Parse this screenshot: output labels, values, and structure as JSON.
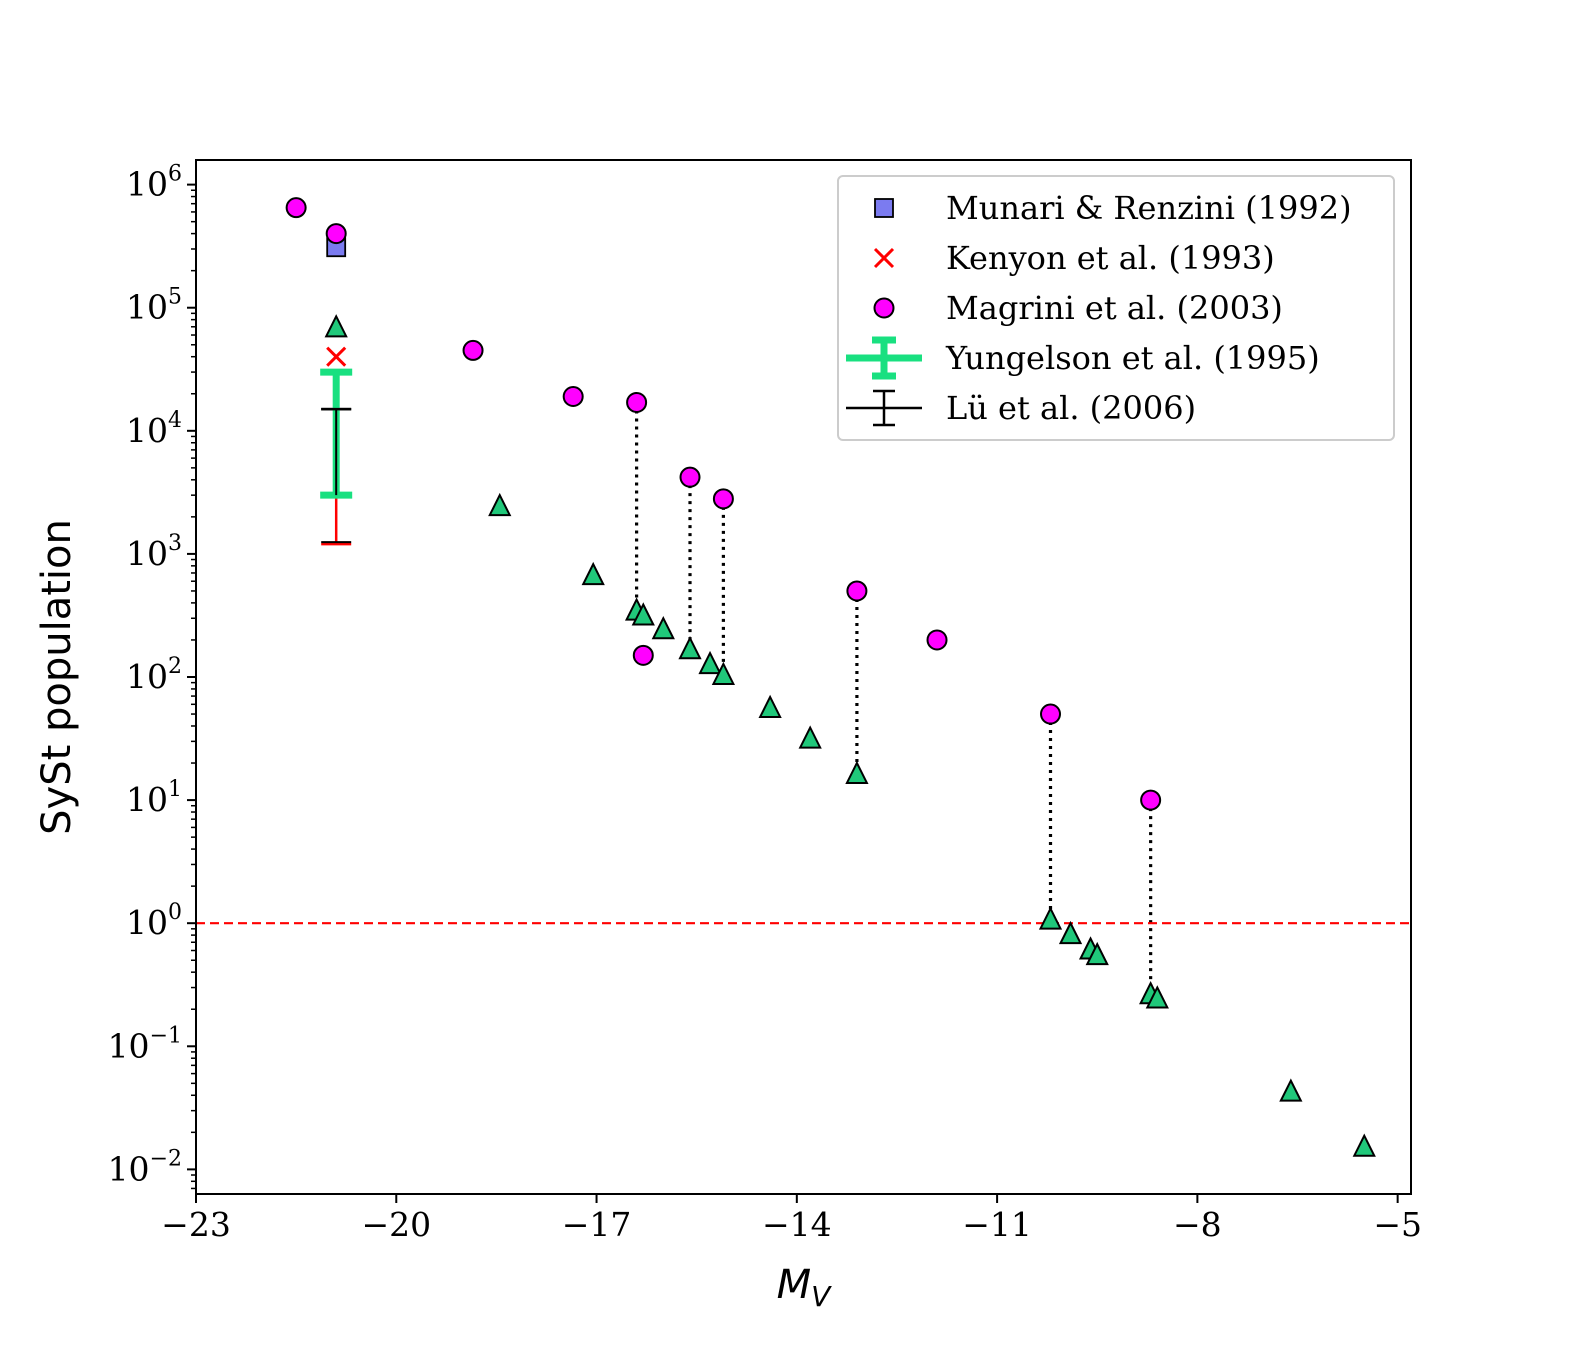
{
  "chart_data": {
    "type": "scatter",
    "title": "",
    "xlabel": "M",
    "xlabel_sub": "V",
    "ylabel": "SySt population",
    "xlim": [
      -23,
      -4.8
    ],
    "ylim_log10": [
      -2.2,
      6.2
    ],
    "yscale": "log",
    "xticks": [
      {
        "value": -23,
        "label": "−23"
      },
      {
        "value": -20,
        "label": "−20"
      },
      {
        "value": -17,
        "label": "−17"
      },
      {
        "value": -14,
        "label": "−14"
      },
      {
        "value": -11,
        "label": "−11"
      },
      {
        "value": -8,
        "label": "−8"
      },
      {
        "value": -5,
        "label": "−5"
      }
    ],
    "yticks": [
      {
        "exp": 6,
        "base": "10",
        "sup": "6"
      },
      {
        "exp": 5,
        "base": "10",
        "sup": "5"
      },
      {
        "exp": 4,
        "base": "10",
        "sup": "4"
      },
      {
        "exp": 3,
        "base": "10",
        "sup": "3"
      },
      {
        "exp": 2,
        "base": "10",
        "sup": "2"
      },
      {
        "exp": 1,
        "base": "10",
        "sup": "1"
      },
      {
        "exp": 0,
        "base": "10",
        "sup": "0"
      },
      {
        "exp": -1,
        "base": "10",
        "sup": "−1"
      },
      {
        "exp": -2,
        "base": "10",
        "sup": "−2"
      }
    ],
    "reference_line": {
      "y": 1,
      "color": "#ff0000",
      "style": "dashed"
    },
    "colors": {
      "munari": "#7b7bf0",
      "kenyon": "#ff0000",
      "magrini": "#ff00ff",
      "yungelson": "#19e080",
      "lu": "#000000",
      "triangle": "#20c87a",
      "lu_low_segment": "#ff0000"
    },
    "legend": [
      {
        "key": "munari",
        "label": "Munari & Renzini (1992)",
        "marker": "square"
      },
      {
        "key": "kenyon",
        "label": "Kenyon et al. (1993)",
        "marker": "x"
      },
      {
        "key": "magrini",
        "label": "Magrini et al. (2003)",
        "marker": "circle"
      },
      {
        "key": "yungelson",
        "label": "Yungelson et al. (1995)",
        "marker": "errorbar-thick"
      },
      {
        "key": "lu",
        "label": "Lü et al. (2006)",
        "marker": "errorbar"
      }
    ],
    "series": {
      "munari": [
        {
          "x": -20.9,
          "y": 310000
        }
      ],
      "kenyon": [
        {
          "x": -20.9,
          "y": 40000
        }
      ],
      "magrini": [
        {
          "x": -21.5,
          "y": 650000
        },
        {
          "x": -20.9,
          "y": 400000
        },
        {
          "x": -18.85,
          "y": 45000
        },
        {
          "x": -17.35,
          "y": 19000
        },
        {
          "x": -16.4,
          "y": 17000
        },
        {
          "x": -16.3,
          "y": 150
        },
        {
          "x": -15.6,
          "y": 4200
        },
        {
          "x": -15.1,
          "y": 2800
        },
        {
          "x": -13.1,
          "y": 500
        },
        {
          "x": -11.9,
          "y": 200
        },
        {
          "x": -10.2,
          "y": 50
        },
        {
          "x": -8.7,
          "y": 10
        }
      ],
      "triangles": [
        {
          "x": -20.9,
          "y": 68000
        },
        {
          "x": -18.45,
          "y": 2400
        },
        {
          "x": -17.05,
          "y": 660
        },
        {
          "x": -16.4,
          "y": 340
        },
        {
          "x": -16.3,
          "y": 310
        },
        {
          "x": -16.0,
          "y": 240
        },
        {
          "x": -15.6,
          "y": 165
        },
        {
          "x": -15.3,
          "y": 125
        },
        {
          "x": -15.1,
          "y": 102
        },
        {
          "x": -14.4,
          "y": 55
        },
        {
          "x": -13.8,
          "y": 31
        },
        {
          "x": -13.1,
          "y": 16
        },
        {
          "x": -10.2,
          "y": 1.05
        },
        {
          "x": -9.9,
          "y": 0.8
        },
        {
          "x": -9.6,
          "y": 0.6
        },
        {
          "x": -9.5,
          "y": 0.54
        },
        {
          "x": -8.7,
          "y": 0.26
        },
        {
          "x": -8.6,
          "y": 0.24
        },
        {
          "x": -6.6,
          "y": 0.042
        },
        {
          "x": -5.5,
          "y": 0.015
        }
      ],
      "yungelson": {
        "x": -20.9,
        "low": 3000,
        "high": 30000
      },
      "lu": {
        "x": -20.9,
        "low": 1200,
        "high": 15000
      },
      "connectors": [
        {
          "x": -16.4,
          "y1": 17000,
          "y2": 340
        },
        {
          "x": -15.6,
          "y1": 4200,
          "y2": 165
        },
        {
          "x": -15.1,
          "y1": 2800,
          "y2": 102
        },
        {
          "x": -13.1,
          "y1": 500,
          "y2": 16
        },
        {
          "x": -10.2,
          "y1": 50,
          "y2": 1.05
        },
        {
          "x": -8.7,
          "y1": 10,
          "y2": 0.26
        }
      ]
    }
  }
}
